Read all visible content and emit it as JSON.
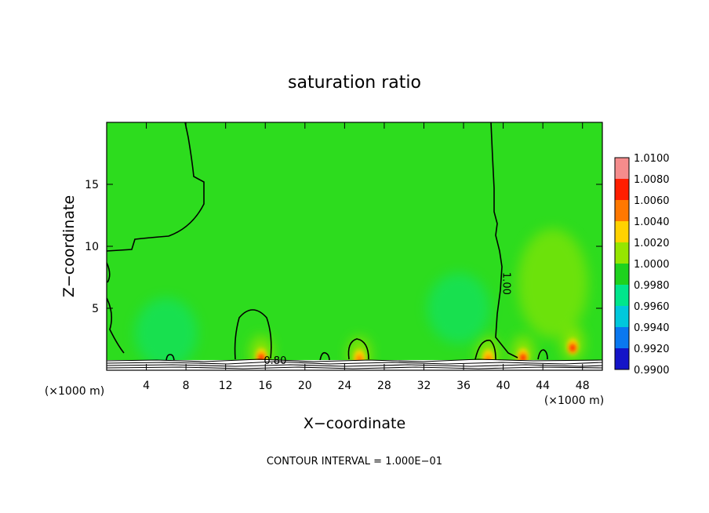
{
  "chart_data": {
    "type": "heatmap",
    "title": "saturation ratio",
    "xlabel": "X−coordinate",
    "ylabel": "Z−coordinate",
    "x_unit_left": "(×1000 m)",
    "x_unit_right": "(×1000 m)",
    "xlim": [
      0,
      50
    ],
    "ylim": [
      0,
      20
    ],
    "x_ticks": [
      4,
      8,
      12,
      16,
      20,
      24,
      28,
      32,
      36,
      40,
      44,
      48
    ],
    "y_ticks": [
      5,
      10,
      15
    ],
    "contour_interval_text": "CONTOUR INTERVAL = 1.000E−01",
    "contour_labels": [
      {
        "text": "1.00",
        "x": 40.0,
        "z": 7.0,
        "rotation": 90
      },
      {
        "text": "0.80",
        "x": 17.0,
        "z": 0.5,
        "rotation": 0
      }
    ],
    "colorbar": {
      "levels": [
        "1.0100",
        "1.0080",
        "1.0060",
        "1.0040",
        "1.0020",
        "1.0000",
        "0.9980",
        "0.9960",
        "0.9940",
        "0.9920",
        "0.9900"
      ],
      "colors": [
        "#f58c8c",
        "#ff1e00",
        "#ff7800",
        "#ffd200",
        "#96e600",
        "#1ed21e",
        "#00e68c",
        "#00c8dc",
        "#0a78f0",
        "#1414c8",
        "#5a14a0"
      ]
    },
    "base_color": "#2ddc1e",
    "features": [
      {
        "kind": "hotspot",
        "x": 15.6,
        "z": 1.0,
        "strength": 1.0083
      },
      {
        "kind": "hotspot",
        "x": 25.5,
        "z": 0.9,
        "strength": 1.006
      },
      {
        "kind": "hotspot",
        "x": 38.5,
        "z": 0.9,
        "strength": 1.007
      },
      {
        "kind": "hotspot",
        "x": 42.0,
        "z": 1.0,
        "strength": 1.0075
      },
      {
        "kind": "hotspot",
        "x": 47.0,
        "z": 1.8,
        "strength": 1.0085
      },
      {
        "kind": "moist",
        "x": 45.0,
        "z": 7.0,
        "strength": 1.0015
      },
      {
        "kind": "dry",
        "x": 35.5,
        "z": 5.0,
        "strength": 0.9975
      },
      {
        "kind": "dry",
        "x": 6.0,
        "z": 3.0,
        "strength": 0.9985
      }
    ]
  }
}
